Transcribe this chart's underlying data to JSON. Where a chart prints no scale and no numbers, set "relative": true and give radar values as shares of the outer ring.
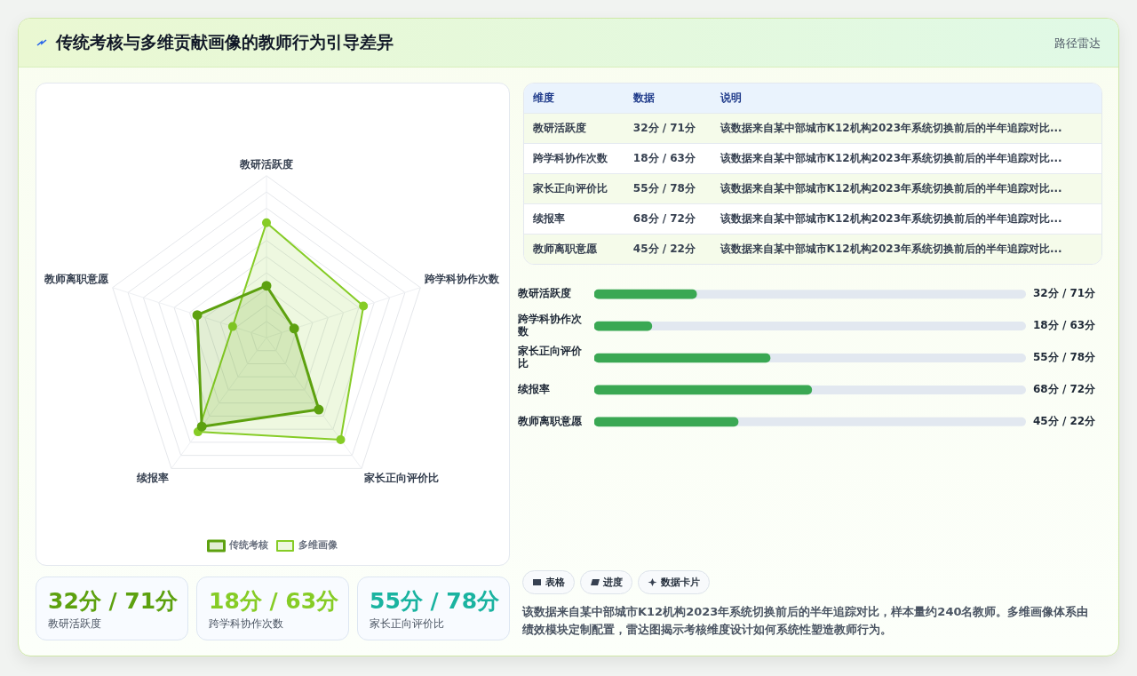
{
  "chart_data": [
    {
      "type": "radar",
      "title": "传统考核与多维贡献画像的教师行为引导差异",
      "annotations": [
        "路径雷达"
      ],
      "categories": [
        "教研活跃度",
        "跨学科协作次数",
        "家长正向评价比",
        "续报率",
        "教师离职意愿"
      ],
      "series": [
        {
          "name": "传统考核",
          "color": "#5da10f",
          "values": [
            0.32,
            0.18,
            0.55,
            0.68,
            0.45
          ]
        },
        {
          "name": "多维画像",
          "color": "#86cc26",
          "values": [
            0.71,
            0.63,
            0.78,
            0.72,
            0.22
          ]
        }
      ],
      "relative": true,
      "grid": true,
      "legend": "bottom",
      "marker": "circle"
    },
    {
      "type": "bar",
      "orientation": "horizontal",
      "categories": [
        "教研活跃度",
        "跨学科协作次数",
        "家长正向评价比",
        "续报率",
        "教师离职意愿"
      ],
      "values": [
        32,
        18,
        55,
        68,
        45
      ],
      "color": "#3aa853",
      "value_labels": [
        "32分 / 71分",
        "18分 / 63分",
        "55分 / 78分",
        "68分 / 72分",
        "45分 / 22分"
      ],
      "xlim": [
        0,
        135
      ],
      "tick_labels": "y"
    },
    {
      "type": "other",
      "annotations": [
        "维度",
        "数据",
        "说明",
        "教研活跃度",
        "32分 / 71分",
        "该数据来自某中部城市K12机构2023年系统切换前后的半年追踪对比...",
        "跨学科协作次数",
        "18分 / 63分",
        "该数据来自某中部城市K12机构2023年系统切换前后的半年追踪对比...",
        "家长正向评价比",
        "55分 / 78分",
        "该数据来自某中部城市K12机构2023年系统切换前后的半年追踪对比...",
        "续报率",
        "68分 / 72分",
        "该数据来自某中部城市K12机构2023年系统切换前后的半年追踪对比...",
        "教师离职意愿",
        "45分 / 22分",
        "该数据来自某中部城市K12机构2023年系统切换前后的半年追踪对比..."
      ]
    },
    {
      "type": "other",
      "annotations": [
        "32分 / 71分",
        "教研活跃度",
        "18分 / 63分",
        "跨学科协作次数",
        "55分 / 78分",
        "家长正向评价比"
      ],
      "colors": [
        "#5da10f",
        "#86cc26",
        "#1ab3a0"
      ]
    },
    {
      "type": "other",
      "annotations": [
        "表格",
        "进度",
        "数据卡片",
        "该数据来自某中部城市K12机构2023年系统切换前后的半年追踪对比，样本量约240名教师。多维画像体系由绩效模块定制配置，雷达图揭示考核维度设计如何系统性塑造教师行为。"
      ]
    }
  ]
}
